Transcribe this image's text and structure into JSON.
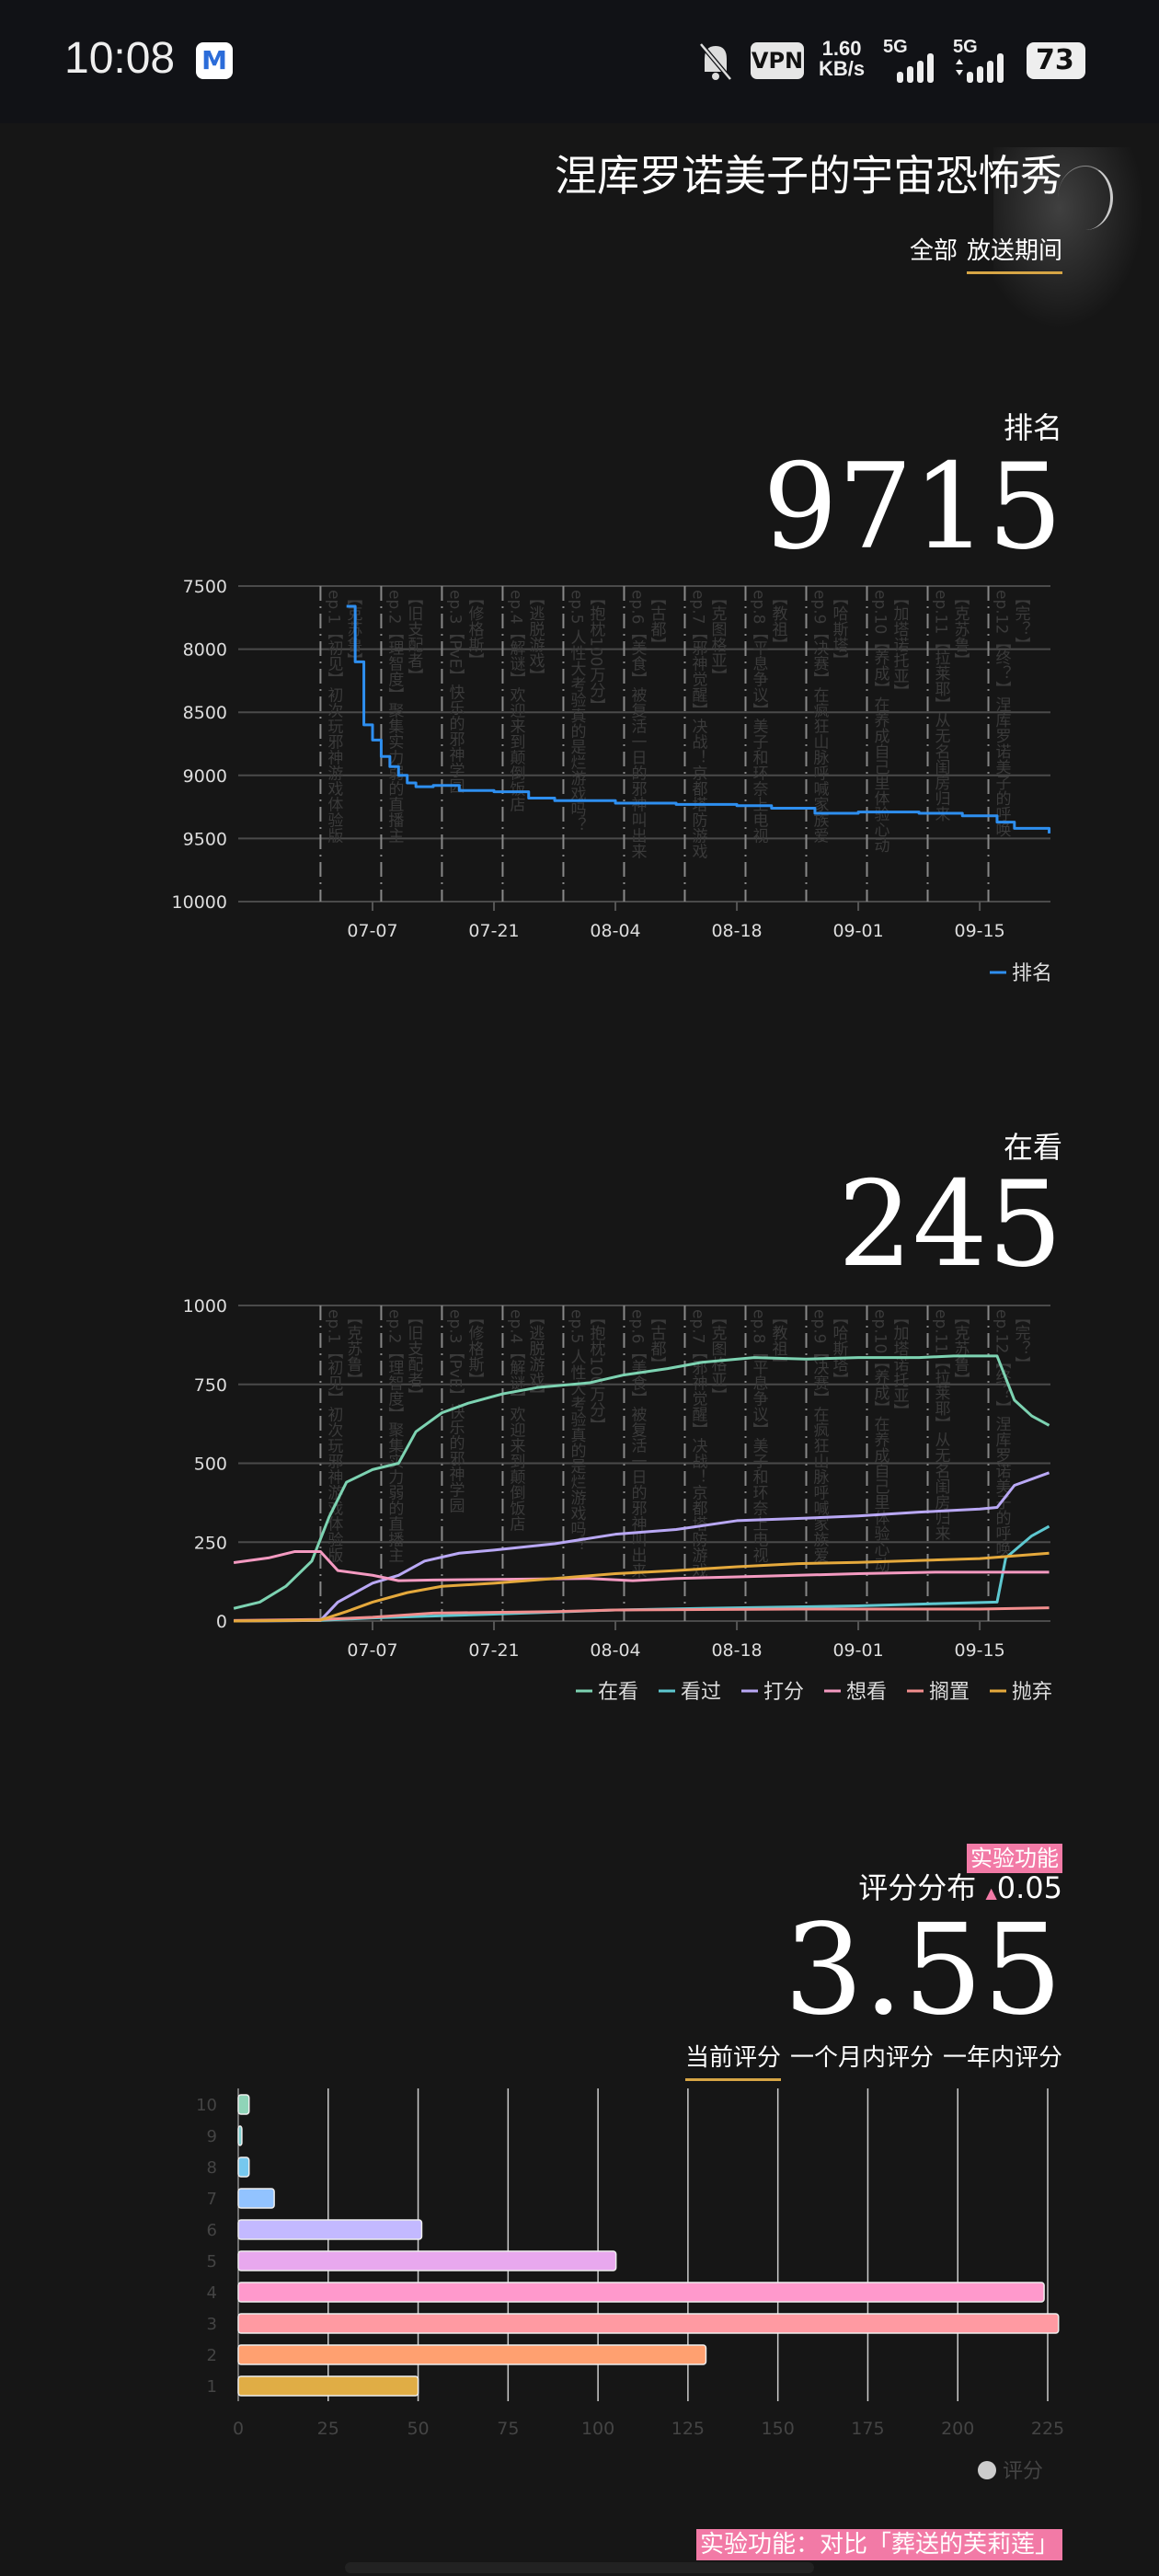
{
  "status_bar": {
    "time": "10:08",
    "app_icon": "M",
    "mute_icon": "bell-off-icon",
    "vpn": "VPN",
    "speed": "1.60",
    "speed_unit": "KB/s",
    "net1": "5G",
    "net2": "5G",
    "battery": "73"
  },
  "header": {
    "title": "涅库罗诺美子的宇宙恐怖秀",
    "tabs": [
      "全部",
      "放送期间"
    ],
    "active_tab": 1
  },
  "episodes": [
    "ep.1【初见】初次玩邪神游戏体验版【克苏鲁】",
    "ep.2【理智度】聚集实力弱的直播主【旧支配者】",
    "ep.3【PvE】快乐的邪神学园【修格斯】",
    "ep.4【解谜】欢迎来到颠倒饭店【逃脱游戏】",
    "ep.5 人性大考验真的是烂游戏吗？【抱枕100万分】",
    "ep.6【美食】被复活一日的邪神叫出来【古都】",
    "ep.7【邪神觉醒】决战！京都塔防游戏【克图格亚】",
    "ep.8【平息争议】美子和环奈上电视【教祖】",
    "ep.9【决赛】在疯狂山脉呼喊家族爱【哈斯塔】",
    "ep.10【养成】在养成自己里体验心动【加塔诺托亚】",
    "ep.11【拉莱耶】从无名闺房归来【克苏鲁】",
    "ep.12【终？】涅库罗诺美子的呼唤【完？】"
  ],
  "episode_dates": [
    "07-01",
    "07-08",
    "07-15",
    "07-22",
    "07-29",
    "08-05",
    "08-12",
    "08-19",
    "08-26",
    "09-02",
    "09-09",
    "09-16"
  ],
  "rank": {
    "label": "排名",
    "value": "9715"
  },
  "watching": {
    "label": "在看",
    "value": "245"
  },
  "rating": {
    "badge": "实验功能",
    "label": "评分分布",
    "delta_icon": "triangle-up-icon",
    "delta": "0.05",
    "value": "3.55",
    "tabs": [
      "当前评分",
      "一个月内评分",
      "一年内评分"
    ],
    "active_tab": 0,
    "compare_button": "实验功能：对比「葬送的芙莉莲」",
    "badge_color": "#f27aa6"
  },
  "chart_data": [
    {
      "type": "line",
      "ylim": [
        7500,
        10000
      ],
      "y_reversed": true,
      "yticks": [
        "7500",
        "8000",
        "8500",
        "9000",
        "9500",
        "10000"
      ],
      "xlim": [
        "06-21",
        "09-23"
      ],
      "xticks": [
        "07-07",
        "07-21",
        "08-04",
        "08-18",
        "09-01",
        "09-15"
      ],
      "grid": true,
      "legend": "bottom-right",
      "series": [
        {
          "name": "排名",
          "color": "#2e8ff0",
          "step": true,
          "points": [
            [
              "07-04",
              7660
            ],
            [
              "07-05",
              8100
            ],
            [
              "07-06",
              8450
            ],
            [
              "07-06",
              8600
            ],
            [
              "07-07",
              8720
            ],
            [
              "07-08",
              8850
            ],
            [
              "07-09",
              8930
            ],
            [
              "07-10",
              9000
            ],
            [
              "07-11",
              9060
            ],
            [
              "07-12",
              9090
            ],
            [
              "07-14",
              9080
            ],
            [
              "07-17",
              9120
            ],
            [
              "07-21",
              9130
            ],
            [
              "07-25",
              9180
            ],
            [
              "07-28",
              9200
            ],
            [
              "08-04",
              9220
            ],
            [
              "08-11",
              9230
            ],
            [
              "08-18",
              9240
            ],
            [
              "08-22",
              9260
            ],
            [
              "08-27",
              9300
            ],
            [
              "09-01",
              9290
            ],
            [
              "09-08",
              9300
            ],
            [
              "09-13",
              9320
            ],
            [
              "09-17",
              9370
            ],
            [
              "09-19",
              9420
            ],
            [
              "09-23",
              9460
            ]
          ]
        }
      ]
    },
    {
      "type": "line",
      "ylim": [
        0,
        1000
      ],
      "yticks": [
        "0",
        "250",
        "500",
        "750",
        "1000"
      ],
      "xlim": [
        "06-21",
        "09-23"
      ],
      "xticks": [
        "07-07",
        "07-21",
        "08-04",
        "08-18",
        "09-01",
        "09-15"
      ],
      "grid": true,
      "legend": "bottom-right",
      "series": [
        {
          "name": "在看",
          "color": "#7dd3b2",
          "points": [
            [
              "06-21",
              40
            ],
            [
              "06-24",
              60
            ],
            [
              "06-27",
              110
            ],
            [
              "06-30",
              190
            ],
            [
              "07-02",
              330
            ],
            [
              "07-04",
              440
            ],
            [
              "07-07",
              480
            ],
            [
              "07-10",
              500
            ],
            [
              "07-12",
              600
            ],
            [
              "07-15",
              660
            ],
            [
              "07-18",
              690
            ],
            [
              "07-22",
              720
            ],
            [
              "07-26",
              740
            ],
            [
              "08-01",
              755
            ],
            [
              "08-05",
              780
            ],
            [
              "08-10",
              800
            ],
            [
              "08-14",
              820
            ],
            [
              "08-20",
              835
            ],
            [
              "08-26",
              830
            ],
            [
              "09-01",
              835
            ],
            [
              "09-08",
              835
            ],
            [
              "09-12",
              840
            ],
            [
              "09-17",
              840
            ],
            [
              "09-19",
              700
            ],
            [
              "09-21",
              650
            ],
            [
              "09-23",
              620
            ]
          ]
        },
        {
          "name": "看过",
          "color": "#5ec8d0",
          "points": [
            [
              "06-21",
              0
            ],
            [
              "07-01",
              2
            ],
            [
              "07-07",
              10
            ],
            [
              "07-21",
              22
            ],
            [
              "08-04",
              35
            ],
            [
              "08-18",
              42
            ],
            [
              "09-01",
              48
            ],
            [
              "09-10",
              55
            ],
            [
              "09-17",
              60
            ],
            [
              "09-18",
              200
            ],
            [
              "09-21",
              270
            ],
            [
              "09-23",
              300
            ]
          ]
        },
        {
          "name": "打分",
          "color": "#b9a8f5",
          "points": [
            [
              "06-21",
              0
            ],
            [
              "07-01",
              2
            ],
            [
              "07-03",
              60
            ],
            [
              "07-07",
              120
            ],
            [
              "07-10",
              145
            ],
            [
              "07-13",
              190
            ],
            [
              "07-17",
              215
            ],
            [
              "07-21",
              225
            ],
            [
              "07-28",
              245
            ],
            [
              "08-04",
              275
            ],
            [
              "08-11",
              290
            ],
            [
              "08-18",
              318
            ],
            [
              "08-25",
              325
            ],
            [
              "09-01",
              333
            ],
            [
              "09-08",
              345
            ],
            [
              "09-15",
              355
            ],
            [
              "09-17",
              360
            ],
            [
              "09-19",
              430
            ],
            [
              "09-23",
              470
            ]
          ]
        },
        {
          "name": "想看",
          "color": "#f49ac1",
          "points": [
            [
              "06-21",
              185
            ],
            [
              "06-25",
              200
            ],
            [
              "06-28",
              220
            ],
            [
              "07-01",
              220
            ],
            [
              "07-03",
              160
            ],
            [
              "07-07",
              145
            ],
            [
              "07-10",
              128
            ],
            [
              "07-14",
              130
            ],
            [
              "07-21",
              132
            ],
            [
              "08-01",
              135
            ],
            [
              "08-06",
              128
            ],
            [
              "08-11",
              135
            ],
            [
              "08-18",
              140
            ],
            [
              "09-01",
              150
            ],
            [
              "09-10",
              155
            ],
            [
              "09-23",
              155
            ]
          ]
        },
        {
          "name": "搁置",
          "color": "#f28e8e",
          "points": [
            [
              "06-21",
              2
            ],
            [
              "07-01",
              5
            ],
            [
              "07-07",
              12
            ],
            [
              "07-14",
              25
            ],
            [
              "07-28",
              30
            ],
            [
              "08-04",
              35
            ],
            [
              "08-25",
              38
            ],
            [
              "09-15",
              38
            ],
            [
              "09-23",
              42
            ]
          ]
        },
        {
          "name": "抛弃",
          "color": "#e5a93c",
          "points": [
            [
              "06-21",
              0
            ],
            [
              "07-01",
              3
            ],
            [
              "07-04",
              30
            ],
            [
              "07-07",
              60
            ],
            [
              "07-11",
              90
            ],
            [
              "07-15",
              110
            ],
            [
              "07-21",
              120
            ],
            [
              "07-28",
              135
            ],
            [
              "08-04",
              150
            ],
            [
              "08-11",
              160
            ],
            [
              "08-18",
              172
            ],
            [
              "08-25",
              182
            ],
            [
              "09-01",
              186
            ],
            [
              "09-15",
              198
            ],
            [
              "09-23",
              215
            ]
          ]
        }
      ]
    },
    {
      "type": "bar",
      "orientation": "horizontal",
      "legend_name": "评分",
      "xlim": [
        0,
        225
      ],
      "xticks": [
        "0",
        "25",
        "50",
        "75",
        "100",
        "125",
        "150",
        "175",
        "200",
        "225"
      ],
      "categories": [
        "10",
        "9",
        "8",
        "7",
        "6",
        "5",
        "4",
        "3",
        "2",
        "1"
      ],
      "values": [
        3,
        1,
        3,
        10,
        51,
        105,
        224,
        228,
        130,
        50
      ],
      "colors": [
        "#8fd4b8",
        "#7fd0d0",
        "#76c8ee",
        "#92c3ff",
        "#c3b9ff",
        "#e8a8ee",
        "#ff99cc",
        "#ff9aa2",
        "#ffa070",
        "#e0ad45"
      ]
    }
  ]
}
